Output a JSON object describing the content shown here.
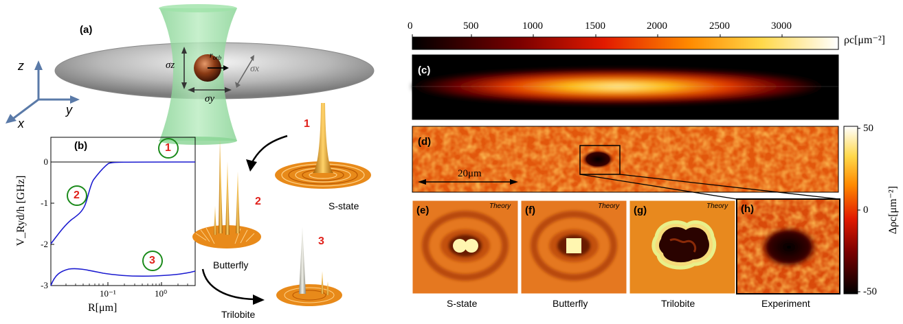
{
  "panel_a": {
    "label": "(a)",
    "sigma_z": "σz",
    "sigma_x": "σx",
    "sigma_y": "σy",
    "r_orb": "r",
    "r_orb_sub": "orb",
    "axis_z": "z",
    "axis_y": "y",
    "axis_x": "x"
  },
  "panel_b": {
    "label": "(b)",
    "ylabel": "V_Ryd/h [GHz]",
    "xlabel": "R[μm]",
    "yticks": [
      "0",
      "-1",
      "-2",
      "-3"
    ],
    "xticks": [
      "10⁻¹",
      "10⁰"
    ],
    "markers": [
      "1",
      "2",
      "3"
    ]
  },
  "potentials": {
    "labels": [
      "S-state",
      "Butterfly",
      "Trilobite"
    ],
    "numbers": [
      "1",
      "2",
      "3"
    ]
  },
  "colorbar_top": {
    "ticks": [
      "0",
      "500",
      "1000",
      "1500",
      "2000",
      "2500",
      "3000"
    ],
    "unit_label": "ρc[μm⁻²]"
  },
  "panel_c": {
    "label": "(c)"
  },
  "panel_d": {
    "label": "(d)",
    "scale_bar": "20μm"
  },
  "colorbar_right": {
    "ticks": [
      "50",
      "0",
      "-50"
    ],
    "label": "Δρc[μm⁻²]"
  },
  "bottom_panels": [
    {
      "label": "(e)",
      "tag": "Theory",
      "caption": "S-state"
    },
    {
      "label": "(f)",
      "tag": "Theory",
      "caption": "Butterfly"
    },
    {
      "label": "(g)",
      "tag": "Theory",
      "caption": "Trilobite"
    },
    {
      "label": "(h)",
      "tag": "",
      "caption": "Experiment"
    }
  ],
  "colors": {
    "curve": "#1a1ad0",
    "circle": "#1a8a1a",
    "number_red": "#e0201a"
  }
}
